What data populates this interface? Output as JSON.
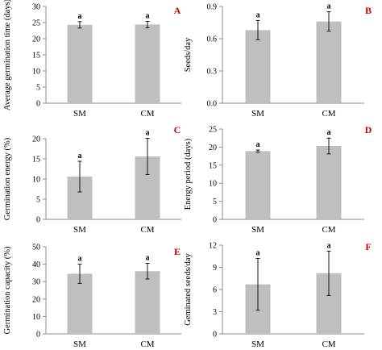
{
  "chart_data": [
    {
      "type": "bar",
      "panel_letter": "A",
      "categories": [
        "SM",
        "CM"
      ],
      "values": [
        24.3,
        24.4
      ],
      "errors": [
        1.0,
        1.0
      ],
      "significance": [
        "a",
        "a"
      ],
      "ylabel": "Average germination time (days)",
      "ylim": [
        0,
        30
      ],
      "yticks": [
        0,
        5,
        10,
        15,
        20,
        25,
        30
      ]
    },
    {
      "type": "bar",
      "panel_letter": "B",
      "categories": [
        "SM",
        "CM"
      ],
      "values": [
        0.68,
        0.76
      ],
      "errors": [
        0.09,
        0.09
      ],
      "significance": [
        "a",
        "a"
      ],
      "ylabel": "Seeds/day",
      "ylim": [
        0,
        0.9
      ],
      "yticks": [
        0.0,
        0.3,
        0.6,
        0.9
      ],
      "yticklabels": [
        "0.0",
        "0.3",
        "0.6",
        "0.9"
      ]
    },
    {
      "type": "bar",
      "panel_letter": "C",
      "categories": [
        "SM",
        "CM"
      ],
      "values": [
        10.6,
        15.6
      ],
      "errors": [
        3.8,
        4.5
      ],
      "significance": [
        "a",
        "a"
      ],
      "ylabel": "Germination energy (%)",
      "ylim": [
        0,
        20
      ],
      "yticks": [
        0,
        5,
        10,
        15,
        20
      ]
    },
    {
      "type": "bar",
      "panel_letter": "D",
      "categories": [
        "SM",
        "CM"
      ],
      "values": [
        18.9,
        20.3
      ],
      "errors": [
        0.3,
        2.2
      ],
      "significance": [
        "a",
        "a"
      ],
      "ylabel": "Energy period (days)",
      "ylim": [
        0,
        25
      ],
      "yticks": [
        0,
        5,
        10,
        15,
        20,
        25
      ]
    },
    {
      "type": "bar",
      "panel_letter": "E",
      "categories": [
        "SM",
        "CM"
      ],
      "values": [
        34.5,
        36.0
      ],
      "errors": [
        5.5,
        4.5
      ],
      "significance": [
        "a",
        "a"
      ],
      "ylabel": "Germination capacity (%)",
      "ylim": [
        0,
        50
      ],
      "yticks": [
        0,
        10,
        20,
        30,
        40,
        50
      ]
    },
    {
      "type": "bar",
      "panel_letter": "F",
      "categories": [
        "SM",
        "CM"
      ],
      "values": [
        6.7,
        8.2
      ],
      "errors": [
        3.5,
        3.0
      ],
      "significance": [
        "a",
        "a"
      ],
      "ylabel": "Geminated seeds/day",
      "ylim": [
        0,
        12
      ],
      "yticks": [
        0,
        3,
        6,
        9,
        12
      ]
    }
  ],
  "colors": {
    "bar": "#bfbfbf",
    "axis": "#8c8c8c",
    "text": "#000000",
    "panel_letter": "#cc0000"
  }
}
